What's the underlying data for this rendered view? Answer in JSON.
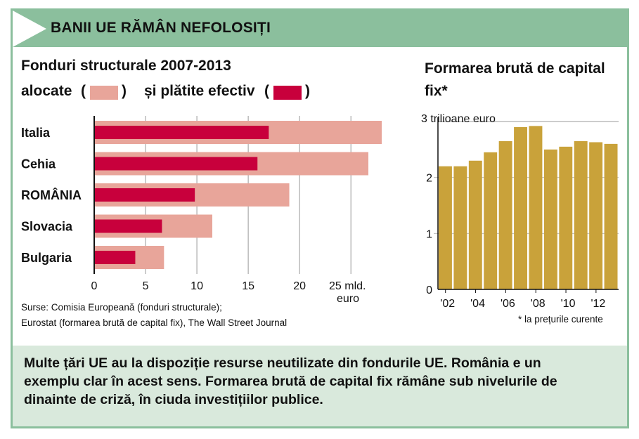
{
  "header": {
    "title": "BANII UE RĂMÂN NEFOLOSIȚI"
  },
  "left_chart": {
    "title": "Fonduri structurale 2007-2013",
    "legend_allocated": "alocate",
    "legend_paid": "și plătite efectiv",
    "paren_open": "(",
    "paren_close": ")",
    "unit_line1": "25 mld.",
    "unit_line2": "euro"
  },
  "right_chart": {
    "title": "Formarea brută de capital fix*",
    "unit_label": "3 trilioane euro",
    "footnote": "* la prețurile curente"
  },
  "source": {
    "line1": "Surse: Comisia Europeană (fonduri structurale);",
    "line2": "Eurostat (formarea brută de capital fix), The Wall Street Journal"
  },
  "footer": {
    "text": "Multe țări UE au la dispoziție resurse neutilizate din fondurile UE. România e un exemplu clar în acest sens. Formarea brută de capital fix rămâne sub nivelurile de dinainte de criză, în ciuda investițiilor publice."
  },
  "colors": {
    "allocated": "#e8a59a",
    "paid": "#c8003c",
    "gold": "#c9a23a",
    "green": "#8bbf9d",
    "pale_green": "#d9e9dc"
  },
  "chart_data": [
    {
      "type": "bar",
      "orientation": "horizontal",
      "title": "Fonduri structurale 2007-2013",
      "categories": [
        "Italia",
        "Cehia",
        "ROMÂNIA",
        "Slovacia",
        "Bulgaria"
      ],
      "series": [
        {
          "name": "alocate",
          "values": [
            28,
            26.7,
            19,
            11.5,
            6.8
          ]
        },
        {
          "name": "și plătite efectiv",
          "values": [
            17,
            15.9,
            9.8,
            6.6,
            4
          ]
        }
      ],
      "xlim": [
        0,
        28
      ],
      "xticks": [
        0,
        5,
        10,
        15,
        20
      ],
      "xticklabels": [
        "0",
        "5",
        "10",
        "15",
        "20"
      ],
      "xlabel": "25 mld. euro"
    },
    {
      "type": "bar",
      "title": "Formarea brută de capital fix*",
      "categories": [
        "'02",
        "'03",
        "'04",
        "'05",
        "'06",
        "'07",
        "'08",
        "'09",
        "'10",
        "'11",
        "'12",
        "'13"
      ],
      "values": [
        2.2,
        2.2,
        2.3,
        2.45,
        2.65,
        2.9,
        2.92,
        2.5,
        2.55,
        2.65,
        2.63,
        2.6
      ],
      "ylim": [
        0,
        3
      ],
      "yticks": [
        0,
        1,
        2
      ],
      "xticklabels": [
        "'02",
        "'04",
        "'06",
        "'08",
        "'10",
        "'12"
      ],
      "ylabel": "3 trilioane euro"
    }
  ]
}
